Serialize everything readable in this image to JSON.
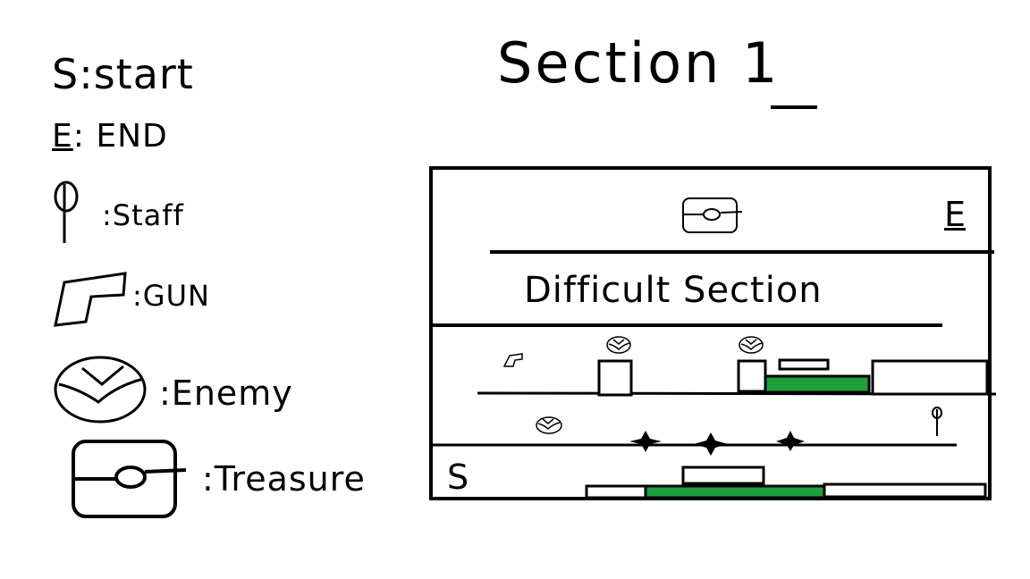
{
  "title": "Section 1",
  "legend": {
    "start_symbol": "S",
    "start_label": ":start",
    "end_symbol": "E",
    "end_label": ": END",
    "staff_label": ":Staff",
    "gun_label": ":GUN",
    "enemy_label": ":Enemy",
    "treasure_label": ":Treasure"
  },
  "map": {
    "end_marker": "E",
    "start_marker": "S",
    "difficult_label": "Difficult Section",
    "platform_color": "#1e9e3c"
  }
}
